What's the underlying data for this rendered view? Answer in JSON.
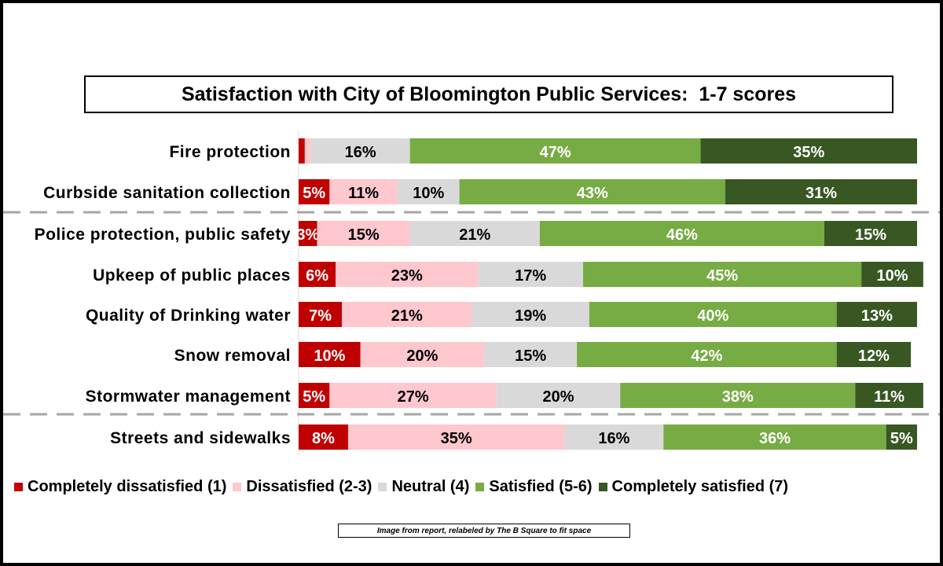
{
  "chart_data": {
    "type": "bar",
    "orientation": "horizontal",
    "stacked": true,
    "title": "Satisfaction with City of Bloomington Public Services:  1-7 scores",
    "categories": [
      "Fire protection",
      "Curbside sanitation collection",
      "Police protection, public safety",
      "Upkeep of public places",
      "Quality of Drinking water",
      "Snow removal",
      "Stormwater management",
      "Streets and sidewalks"
    ],
    "series": [
      {
        "name": "Completely dissatisfied (1)",
        "color": "#c00000",
        "values": [
          1,
          5,
          3,
          6,
          7,
          10,
          5,
          8
        ],
        "labels": [
          "",
          "5%",
          "3%",
          "6%",
          "7%",
          "10%",
          "5%",
          "8%"
        ]
      },
      {
        "name": "Dissatisfied (2-3)",
        "color": "#ffc7ce",
        "values": [
          1,
          11,
          15,
          23,
          21,
          20,
          27,
          35
        ],
        "labels": [
          "",
          "11%",
          "15%",
          "23%",
          "21%",
          "20%",
          "27%",
          "35%"
        ]
      },
      {
        "name": "Neutral (4)",
        "color": "#d9d9d9",
        "values": [
          16,
          10,
          21,
          17,
          19,
          15,
          20,
          16
        ],
        "labels": [
          "16%",
          "10%",
          "21%",
          "17%",
          "19%",
          "15%",
          "20%",
          "16%"
        ]
      },
      {
        "name": "Satisfied (5-6)",
        "color": "#77ab43",
        "values": [
          47,
          43,
          46,
          45,
          40,
          42,
          38,
          36
        ],
        "labels": [
          "47%",
          "43%",
          "46%",
          "45%",
          "40%",
          "42%",
          "38%",
          "36%"
        ]
      },
      {
        "name": "Completely satisfied (7)",
        "color": "#385723",
        "values": [
          35,
          31,
          15,
          10,
          13,
          12,
          11,
          5
        ],
        "labels": [
          "35%",
          "31%",
          "15%",
          "10%",
          "13%",
          "12%",
          "11%",
          "5%"
        ]
      }
    ],
    "xlim": [
      0,
      100
    ],
    "grid": false,
    "legend_position": "bottom",
    "group_separators_after": [
      1,
      6
    ]
  },
  "footnote": "Image from report, relabeled by The B Square to fit space"
}
